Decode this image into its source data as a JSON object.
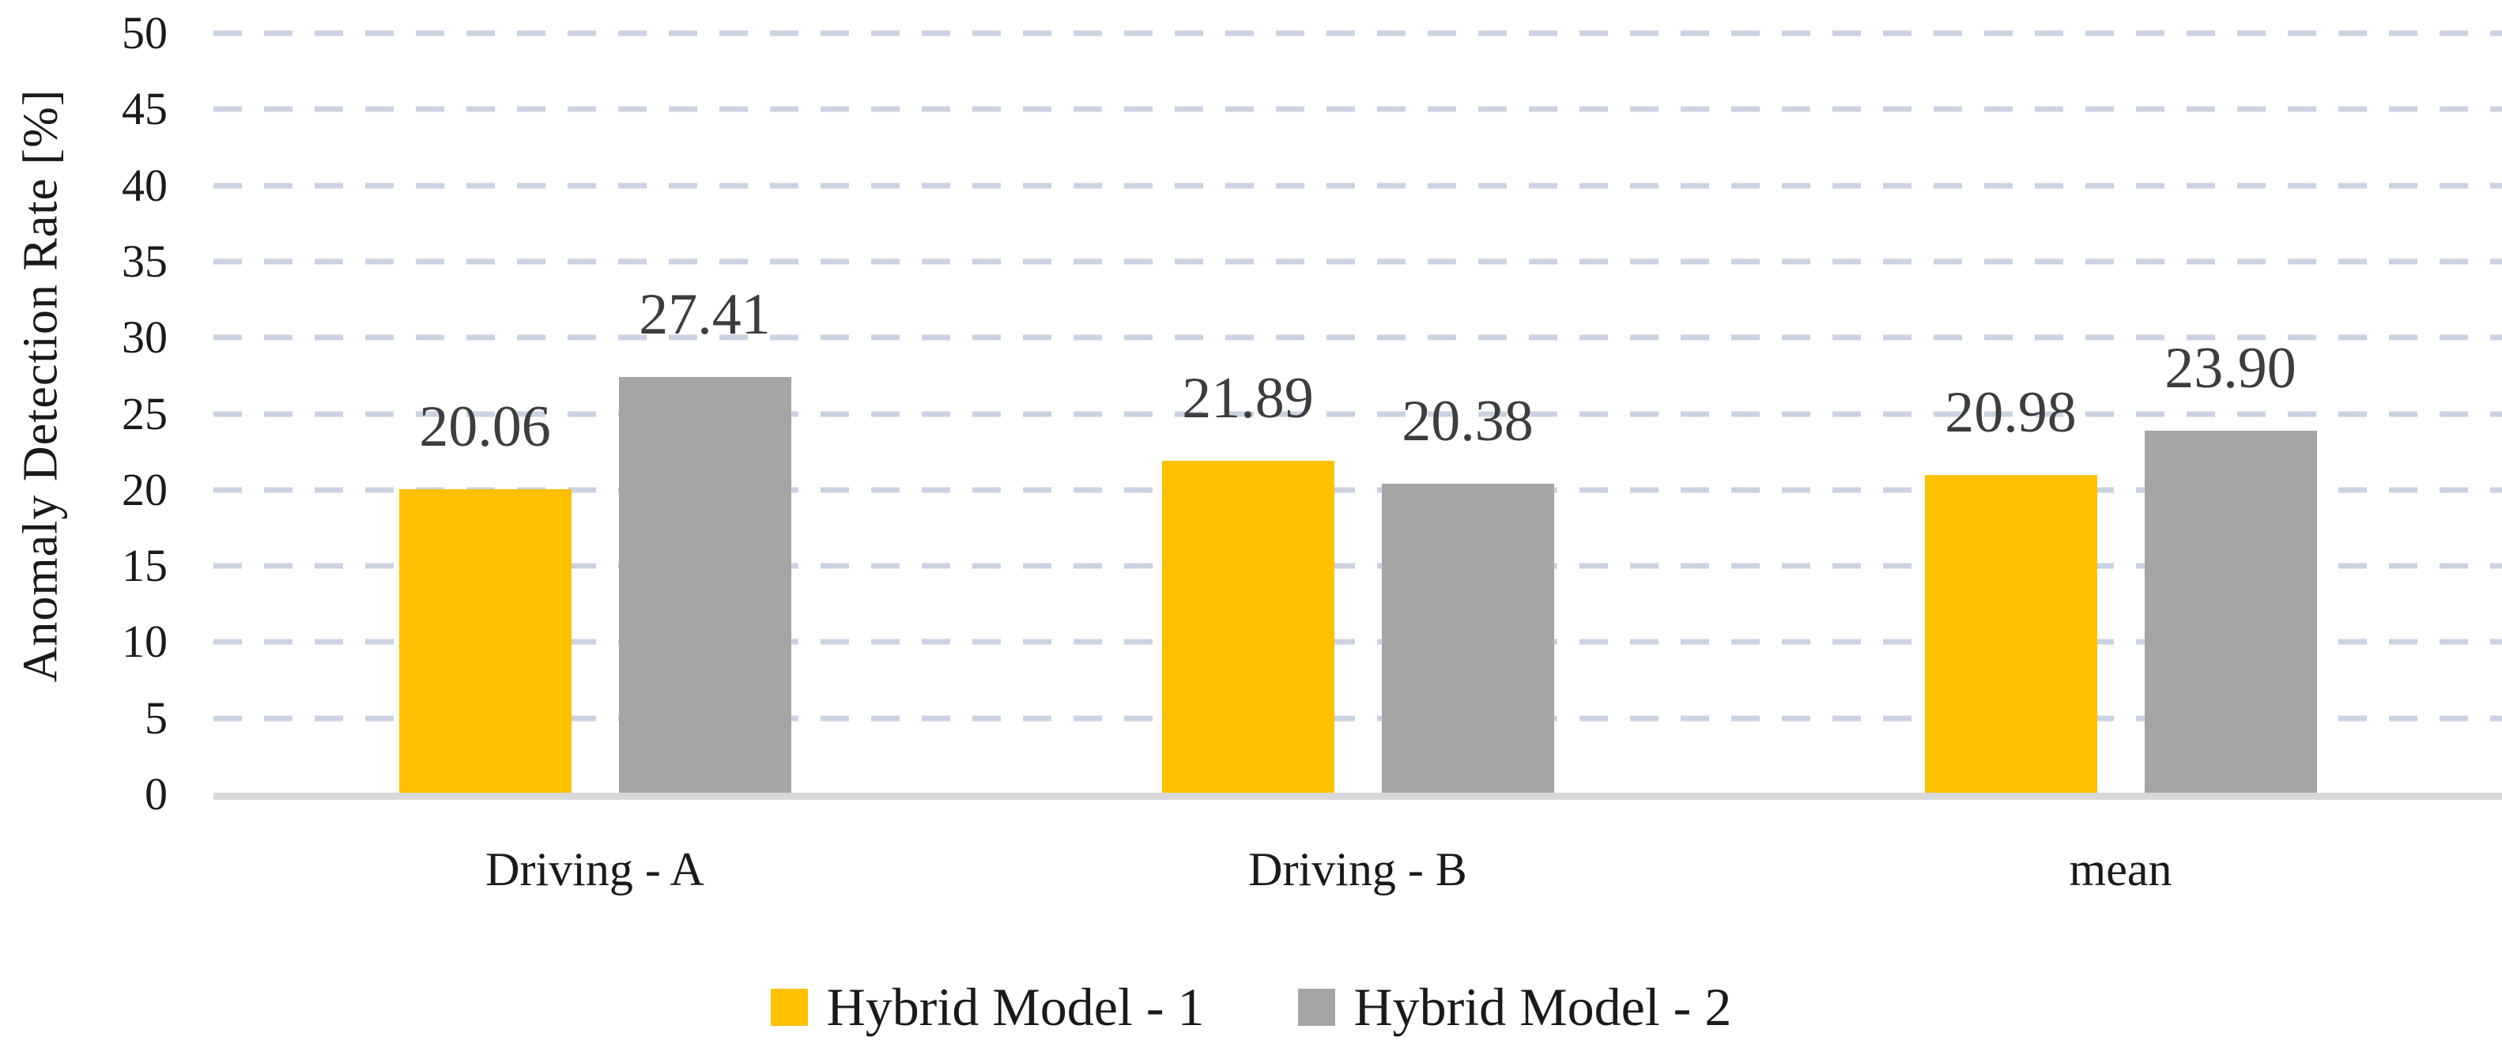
{
  "chart_data": {
    "type": "bar",
    "title": "",
    "xlabel": "",
    "ylabel": "Anomaly Detection Rate [%]",
    "categories": [
      "Driving - A",
      "Driving - B",
      "mean"
    ],
    "series": [
      {
        "name": "Hybrid Model - 1",
        "color": "#FFC000",
        "values": [
          20.06,
          21.89,
          20.98
        ],
        "labels": [
          "20.06",
          "21.89",
          "20.98"
        ]
      },
      {
        "name": "Hybrid Model - 2",
        "color": "#A5A5A5",
        "values": [
          27.41,
          20.38,
          23.9
        ],
        "labels": [
          "27.41",
          "20.38",
          "23.90"
        ]
      }
    ],
    "ylim": [
      0,
      50
    ],
    "ytick_step": 5,
    "yticks": [
      "0",
      "5",
      "10",
      "15",
      "20",
      "25",
      "30",
      "35",
      "40",
      "45",
      "50"
    ],
    "grid": "horizontal-dashed",
    "legend_position": "bottom",
    "data_labels": true
  },
  "colors": {
    "background": "#ffffff",
    "gridline": "#cbd2e2",
    "axis_line": "#d8d8d8",
    "data_label_text": "#3d3d3d",
    "axis_text": "#1a1a1a"
  }
}
